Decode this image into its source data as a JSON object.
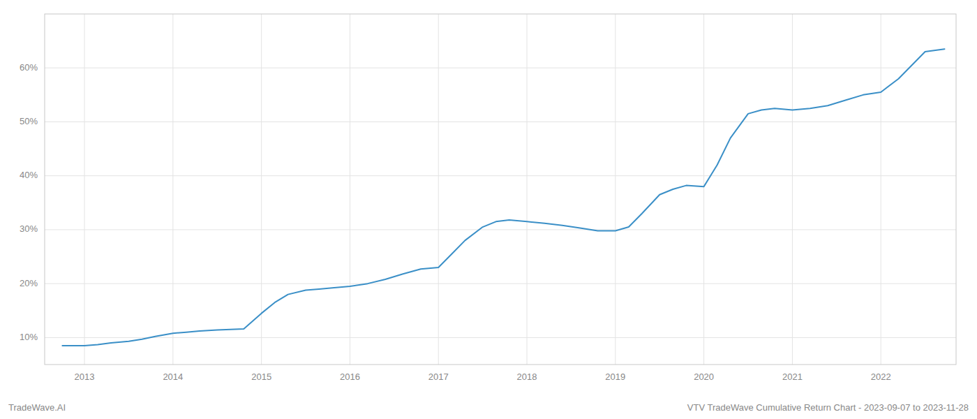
{
  "chart_data": {
    "type": "line",
    "x": [
      2012.75,
      2013.0,
      2013.15,
      2013.3,
      2013.5,
      2013.65,
      2013.8,
      2014.0,
      2014.15,
      2014.3,
      2014.5,
      2014.65,
      2014.8,
      2015.0,
      2015.15,
      2015.3,
      2015.5,
      2015.65,
      2015.8,
      2016.0,
      2016.2,
      2016.4,
      2016.6,
      2016.8,
      2017.0,
      2017.15,
      2017.3,
      2017.5,
      2017.65,
      2017.8,
      2018.0,
      2018.2,
      2018.4,
      2018.6,
      2018.8,
      2019.0,
      2019.15,
      2019.3,
      2019.5,
      2019.65,
      2019.8,
      2020.0,
      2020.15,
      2020.3,
      2020.5,
      2020.65,
      2020.8,
      2021.0,
      2021.2,
      2021.4,
      2021.6,
      2021.8,
      2022.0,
      2022.2,
      2022.5,
      2022.72
    ],
    "values": [
      8.5,
      8.5,
      8.7,
      9.0,
      9.3,
      9.7,
      10.2,
      10.8,
      11.0,
      11.2,
      11.4,
      11.5,
      11.6,
      14.5,
      16.5,
      18.0,
      18.8,
      19.0,
      19.2,
      19.5,
      20.0,
      20.8,
      21.8,
      22.7,
      23.0,
      25.5,
      28.0,
      30.5,
      31.5,
      31.8,
      31.5,
      31.2,
      30.8,
      30.3,
      29.8,
      29.8,
      30.5,
      33.0,
      36.5,
      37.5,
      38.2,
      38.0,
      42.0,
      47.0,
      51.5,
      52.2,
      52.5,
      52.2,
      52.5,
      53.0,
      54.0,
      55.0,
      55.5,
      58.0,
      63.0,
      63.5
    ],
    "color": "#3a8fc7",
    "xlim": [
      2012.55,
      2022.85
    ],
    "xticks": [
      2013,
      2014,
      2015,
      2016,
      2017,
      2018,
      2019,
      2020,
      2021,
      2022
    ],
    "ylim": [
      5,
      70
    ],
    "yticks": [
      {
        "value": 10,
        "label": "10%"
      },
      {
        "value": 20,
        "label": "20%"
      },
      {
        "value": 30,
        "label": "30%"
      },
      {
        "value": 40,
        "label": "40%"
      },
      {
        "value": 50,
        "label": "50%"
      },
      {
        "value": 60,
        "label": "60%"
      }
    ],
    "grid": true,
    "annotations": [
      "TradeWave.AI",
      "VTV TradeWave Cumulative Return Chart - 2023-09-07 to 2023-11-28"
    ]
  }
}
